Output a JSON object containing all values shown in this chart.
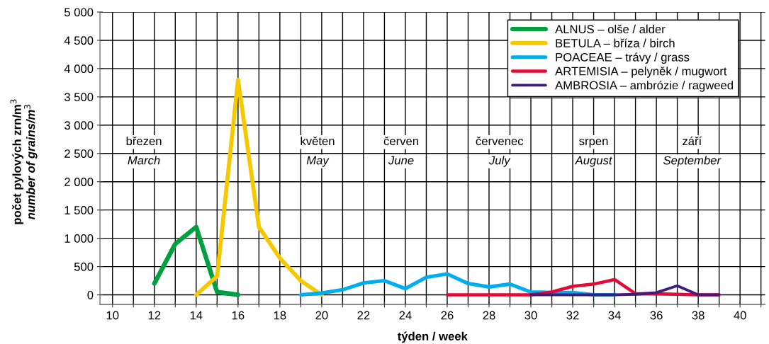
{
  "chart_data": {
    "type": "line",
    "xlabel": "týden / week",
    "ylabel": "počet pylových zrn/m$^{3}$\nnumber of grains/m$^{3}$",
    "xlim": [
      9.4,
      41.2
    ],
    "ylim": [
      -170,
      5000
    ],
    "xticks": [
      10,
      {
        "value": 11,
        "label": null
      },
      12,
      {
        "value": 13,
        "label": null
      },
      14,
      {
        "value": 15,
        "label": null
      },
      16,
      {
        "value": 17,
        "label": null
      },
      18,
      {
        "value": 19,
        "label": null
      },
      20,
      {
        "value": 21,
        "label": null
      },
      22,
      {
        "value": 23,
        "label": null
      },
      24,
      {
        "value": 25,
        "label": null
      },
      26,
      {
        "value": 27,
        "label": null
      },
      28,
      {
        "value": 29,
        "label": null
      },
      30,
      {
        "value": 31,
        "label": null
      },
      32,
      {
        "value": 33,
        "label": null
      },
      34,
      {
        "value": 35,
        "label": null
      },
      36,
      {
        "value": 37,
        "label": null
      },
      38,
      {
        "value": 39,
        "label": null
      },
      40,
      {
        "value": 41,
        "label": null
      }
    ],
    "yticks": [
      {
        "value": 0,
        "label": "0"
      },
      {
        "value": 500,
        "label": "500"
      },
      {
        "value": 1000,
        "label": "1 000"
      },
      {
        "value": 1500,
        "label": "1 500"
      },
      {
        "value": 2000,
        "label": "2 000"
      },
      {
        "value": 2500,
        "label": "2 500"
      },
      {
        "value": 3000,
        "label": "3 000"
      },
      {
        "value": 3500,
        "label": "3 500"
      },
      {
        "value": 4000,
        "label": "4 000"
      },
      {
        "value": 4500,
        "label": "4 500"
      },
      {
        "value": 5000,
        "label": "5 000"
      }
    ],
    "grid": true,
    "legend": "top right",
    "marker": "none",
    "line_style": "solid",
    "annotations": [
      "březen\nMarch",
      "květen\nMay",
      "červen\nJune",
      "červenec\nJuly",
      "srpen\nAugust",
      "září\nSeptember"
    ],
    "series": [
      {
        "name": "ALNUS – olše / alder",
        "color": "#00a040",
        "x": [
          12,
          13,
          14,
          15,
          16
        ],
        "values": [
          200,
          900,
          1200,
          50,
          0
        ]
      },
      {
        "name": "BETULA – bříza / birch",
        "color": "#f5c800",
        "x": [
          14,
          15,
          16,
          17,
          18,
          19,
          20
        ],
        "values": [
          0,
          330,
          3800,
          1200,
          650,
          250,
          0
        ]
      },
      {
        "name": "POACEAE – trávy / grass",
        "color": "#00aeef",
        "x": [
          19,
          20,
          21,
          22,
          23,
          24,
          25,
          26,
          27,
          28,
          29,
          30,
          31,
          32,
          33,
          34
        ],
        "values": [
          0,
          30,
          90,
          210,
          250,
          110,
          310,
          370,
          200,
          140,
          190,
          50,
          40,
          40,
          0,
          0
        ]
      },
      {
        "name": "ARTEMISIA – pelyněk / mugwort",
        "color": "#e30a35",
        "x": [
          26,
          27,
          28,
          29,
          30,
          31,
          32,
          33,
          34,
          35,
          36,
          37,
          38,
          39
        ],
        "values": [
          0,
          0,
          0,
          0,
          0,
          50,
          150,
          190,
          270,
          20,
          20,
          10,
          0,
          0
        ]
      },
      {
        "name": "AMBROSIA – ambrózie / ragweed",
        "color": "#3f1a7f",
        "x": [
          30,
          31,
          32,
          33,
          34,
          35,
          36,
          37,
          38,
          39
        ],
        "values": [
          0,
          0,
          0,
          0,
          0,
          10,
          40,
          160,
          0,
          0
        ]
      }
    ]
  }
}
